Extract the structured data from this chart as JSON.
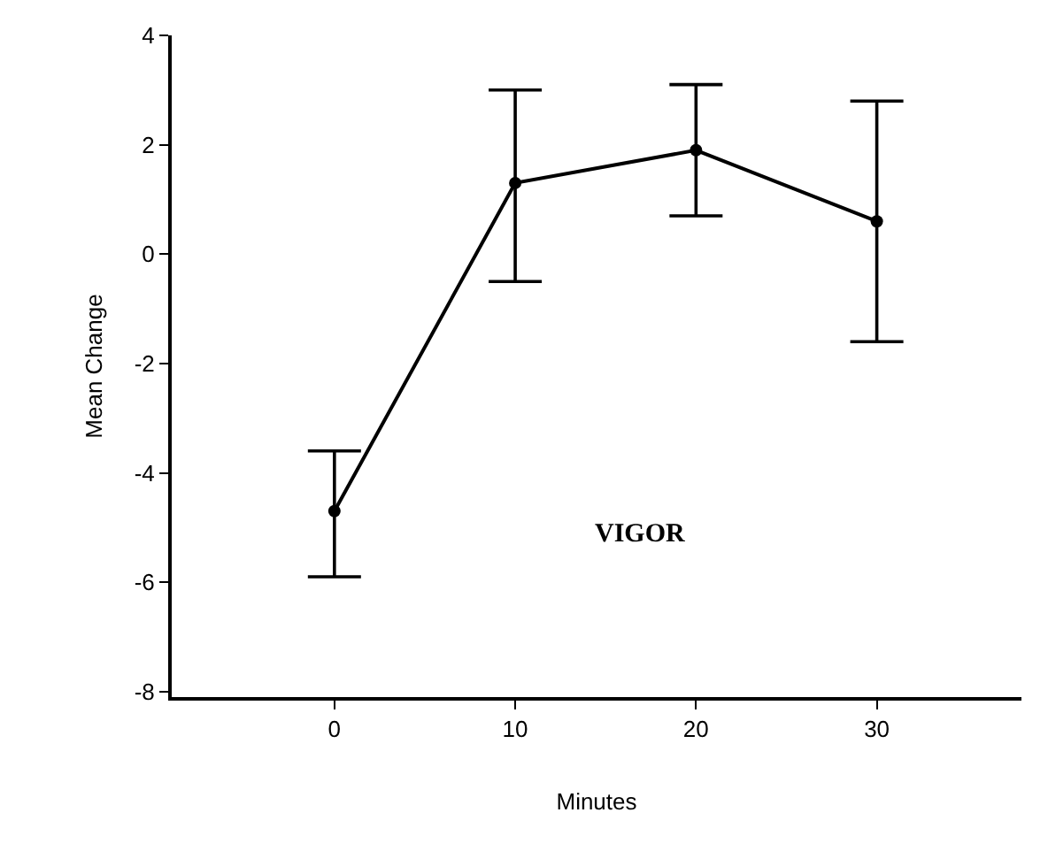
{
  "chart_data": {
    "type": "line",
    "xlabel": "Minutes",
    "ylabel": "Mean Change",
    "x": [
      0,
      10,
      20,
      30
    ],
    "series": [
      {
        "color": "#000000",
        "values": [
          -4.7,
          1.3,
          1.9,
          0.6
        ],
        "errors": [
          [
            -5.9,
            -3.6
          ],
          [
            -0.5,
            3.0
          ],
          [
            0.7,
            3.1
          ],
          [
            -1.6,
            2.8
          ]
        ]
      }
    ],
    "xlim": [
      -9,
      38
    ],
    "xticks": [
      0,
      10,
      20,
      30
    ],
    "ylim": [
      -8.1,
      4
    ],
    "yticks": [
      4,
      2,
      0,
      -2,
      -4,
      -6,
      -8
    ],
    "annotations": [
      "VIGOR"
    ],
    "marker": "circle",
    "line_style": "solid",
    "legend": false
  }
}
